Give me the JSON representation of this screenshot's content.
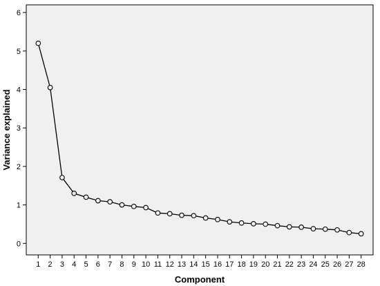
{
  "chart_data": {
    "type": "line",
    "title": "",
    "xlabel": "Component",
    "ylabel": "Variance explained",
    "x": [
      1,
      2,
      3,
      4,
      5,
      6,
      7,
      8,
      9,
      10,
      11,
      12,
      13,
      14,
      15,
      16,
      17,
      18,
      19,
      20,
      21,
      22,
      23,
      24,
      25,
      26,
      27,
      28
    ],
    "x_tick_labels": [
      "1",
      "2",
      "3",
      "4",
      "5",
      "6",
      "7",
      "8",
      "9",
      "10",
      "11",
      "12",
      "13",
      "14",
      "15",
      "16",
      "17",
      "18",
      "19",
      "20",
      "21",
      "22",
      "23",
      "24",
      "25",
      "26",
      "27",
      "28"
    ],
    "series": [
      {
        "values": [
          5.2,
          4.05,
          1.71,
          1.3,
          1.2,
          1.11,
          1.08,
          1.0,
          0.96,
          0.93,
          0.79,
          0.77,
          0.73,
          0.72,
          0.66,
          0.62,
          0.56,
          0.53,
          0.51,
          0.5,
          0.46,
          0.43,
          0.42,
          0.38,
          0.37,
          0.35,
          0.28,
          0.25
        ],
        "marker": "open-circle",
        "color": "#000000"
      }
    ],
    "y_ticks": [
      0,
      1,
      2,
      3,
      4,
      5,
      6
    ],
    "y_tick_labels": [
      "0",
      "1",
      "2",
      "3",
      "4",
      "5",
      "6"
    ],
    "xlim": [
      0,
      29
    ],
    "ylim": [
      -0.3,
      6.2
    ],
    "grid": false,
    "legend": "none",
    "colors": {
      "plot_background": "#f0f0f0",
      "frame": "#000000",
      "line": "#000000",
      "marker_fill": "#f0f0f0"
    }
  }
}
